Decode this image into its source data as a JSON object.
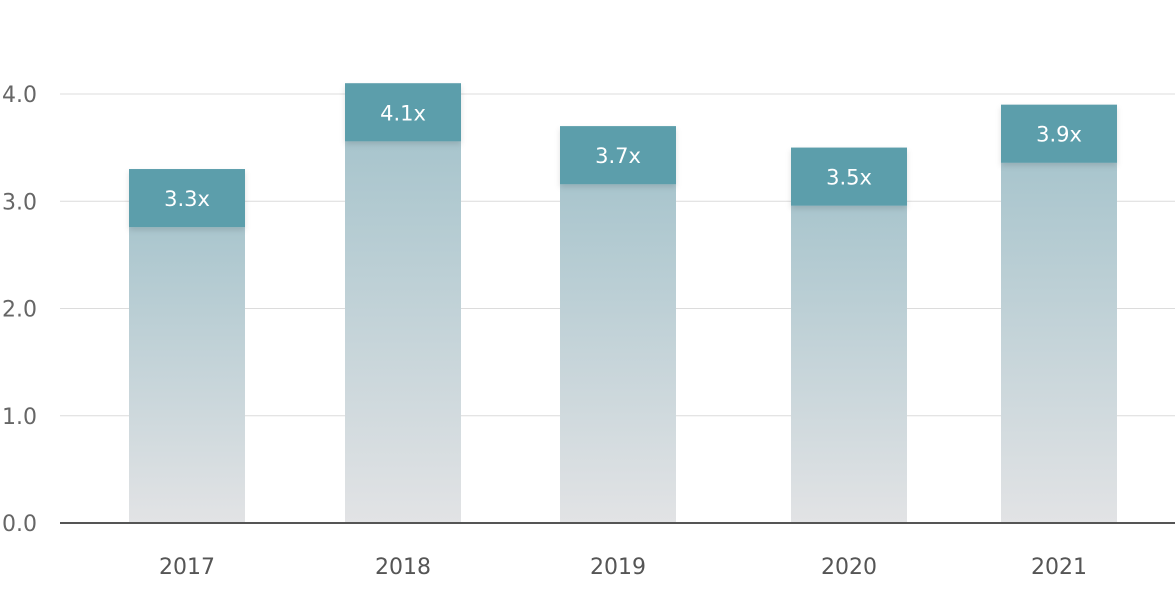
{
  "chart_data": {
    "type": "bar",
    "categories": [
      "2017",
      "2018",
      "2019",
      "2020",
      "2021"
    ],
    "values": [
      3.3,
      4.1,
      3.7,
      3.5,
      3.9
    ],
    "data_labels": [
      "3.3x",
      "4.1x",
      "3.7x",
      "3.5x",
      "3.9x"
    ],
    "yticks": [
      {
        "value": 0,
        "label": "0.0"
      },
      {
        "value": 1,
        "label": "1.0"
      },
      {
        "value": 2,
        "label": "2.0"
      },
      {
        "value": 3,
        "label": "3.0"
      },
      {
        "value": 4,
        "label": "4.0"
      }
    ],
    "ylim": [
      0,
      4.0
    ],
    "grid": true,
    "legend": "none",
    "title": "",
    "xlabel": "",
    "ylabel": "",
    "colors": {
      "bar_cap": "#5b9eab",
      "bar_gradient_top": "#9fc0c9",
      "bar_gradient_bottom": "#e2e3e5",
      "grid": "#dcdcdc",
      "axis": "#555555"
    }
  }
}
